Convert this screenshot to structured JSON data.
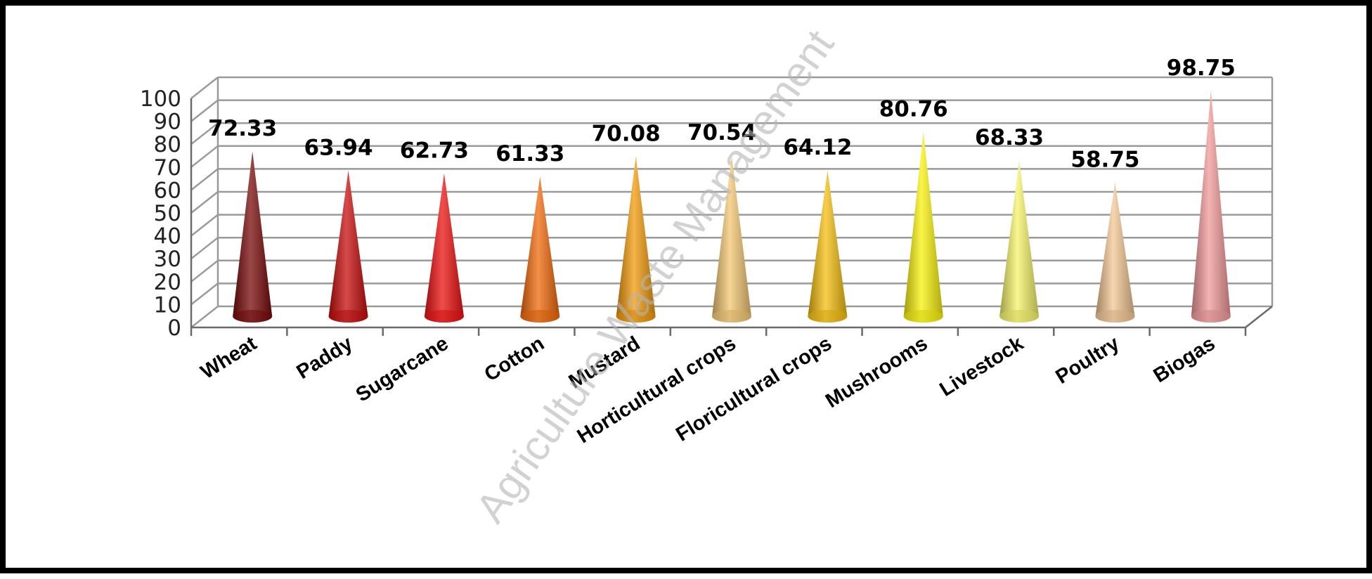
{
  "chart_data": {
    "type": "bar",
    "shape": "cone",
    "title": "",
    "xlabel": "",
    "ylabel": "",
    "ylim": [
      0,
      100
    ],
    "yticks": [
      0,
      10,
      20,
      30,
      40,
      50,
      60,
      70,
      80,
      90,
      100
    ],
    "grid": true,
    "legend": "none",
    "categories": [
      "Wheat",
      "Paddy",
      "Sugarcane",
      "Cotton",
      "Mustard",
      "Horticultural crops",
      "Floricultural crops",
      "Mushrooms",
      "Livestock",
      "Poultry",
      "Biogas"
    ],
    "values": [
      72.33,
      63.94,
      62.73,
      61.33,
      70.08,
      70.54,
      64.12,
      80.76,
      68.33,
      58.75,
      98.75
    ],
    "data_labels": [
      "72.33",
      "63.94",
      "62.73",
      "61.33",
      "70.08",
      "70.54",
      "64.12",
      "80.76",
      "68.33",
      "58.75",
      "98.75"
    ],
    "colors": [
      "#7a0a0a",
      "#c80d0d",
      "#ee1111",
      "#f06a0c",
      "#f29a0c",
      "#f3c773",
      "#f4be10",
      "#f9f20d",
      "#f6f36a",
      "#f3c795",
      "#f29a9a"
    ],
    "watermark": "Agriculture Waste Management"
  }
}
